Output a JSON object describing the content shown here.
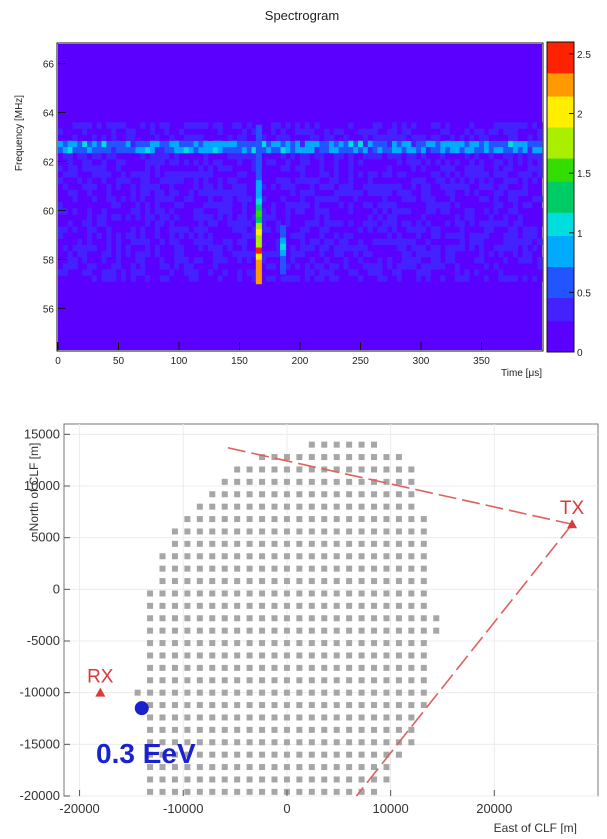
{
  "chart_data": [
    {
      "type": "heatmap",
      "title": "Spectrogram",
      "xlabel": "Time [μs]",
      "ylabel": "Frequency [MHz]",
      "xlim": [
        0,
        400
      ],
      "ylim": [
        54.3,
        66.8
      ],
      "xticks": [
        0,
        50,
        100,
        150,
        200,
        250,
        300,
        350
      ],
      "yticks": [
        56,
        58,
        60,
        62,
        64,
        66
      ],
      "noise_band_mhz": [
        57.1,
        63.4
      ],
      "channel_line_mhz": 62.4,
      "pulses": [
        {
          "time_us": 166,
          "freq_range_mhz": [
            57.0,
            63.4
          ],
          "peak_value": 2.6,
          "peak_freq_mhz": 57.7
        },
        {
          "time_us": 186,
          "freq_range_mhz": [
            57.4,
            59.3
          ],
          "peak_value": 1.0,
          "peak_freq_mhz": 58.3
        }
      ],
      "colorbar": {
        "min": 0,
        "max": 2.6,
        "ticks": [
          0,
          0.5,
          1,
          1.5,
          2,
          2.5
        ],
        "colors": [
          "#5a00ff",
          "#4422ff",
          "#2255ff",
          "#00aaff",
          "#00dddd",
          "#00cc66",
          "#33dd00",
          "#aaee00",
          "#ffee00",
          "#ff9900",
          "#ff2200"
        ]
      }
    },
    {
      "type": "scatter",
      "xlabel": "East of CLF [m]",
      "ylabel": "North of CLF [m]",
      "xlim": [
        -21500,
        30000
      ],
      "ylim": [
        -20000,
        16000
      ],
      "xticks": [
        -20000,
        -10000,
        0,
        10000,
        20000
      ],
      "yticks": [
        -20000,
        -15000,
        -10000,
        -5000,
        0,
        5000,
        10000,
        15000
      ],
      "detector_array": {
        "color": "#a6a6a6",
        "spacing_m": 1200,
        "marker": "square"
      },
      "stations": [
        {
          "label": "TX",
          "x": 27500,
          "y": 6300,
          "color": "#d93a3a"
        },
        {
          "label": "RX",
          "x": -18000,
          "y": -10000,
          "color": "#d93a3a"
        }
      ],
      "beam_edges": [
        {
          "from": [
            -5700,
            13700
          ],
          "to": [
            27500,
            6300
          ]
        },
        {
          "from": [
            27500,
            6300
          ],
          "to": [
            6700,
            -20000
          ]
        }
      ],
      "event": {
        "label": "0.3 EeV",
        "x": -14000,
        "y": -11500,
        "color": "#1a22cc"
      }
    }
  ]
}
